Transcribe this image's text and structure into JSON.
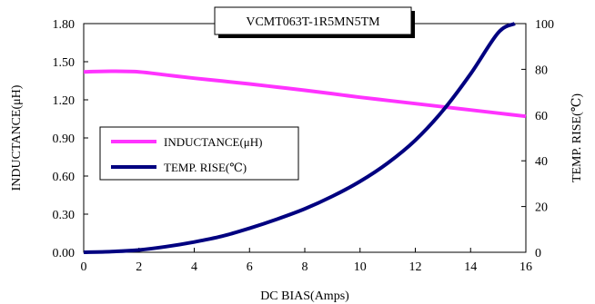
{
  "chart_data": {
    "type": "line",
    "title": "VCMT063T-1R5MN5TM",
    "xlabel": "DC BIAS(Amps)",
    "ylabel": "INDUCTANCE(μH)",
    "y2label": "TEMP. RISE(℃)",
    "xlim": [
      0,
      16
    ],
    "ylim": [
      0,
      1.8
    ],
    "y2lim": [
      0,
      100
    ],
    "x_ticks": [
      "0",
      "2",
      "4",
      "6",
      "8",
      "10",
      "12",
      "14",
      "16"
    ],
    "y_ticks": [
      "0.00",
      "0.30",
      "0.60",
      "0.90",
      "1.20",
      "1.50",
      "1.80"
    ],
    "y2_ticks": [
      "0",
      "20",
      "40",
      "60",
      "80",
      "100"
    ],
    "grid": false,
    "legend_placement": "middle-left",
    "series": [
      {
        "name": "INDUCTANCE(μH)",
        "axis": "left",
        "color": "#ff33ff",
        "x": [
          0,
          1,
          2,
          3,
          4,
          5,
          6,
          7,
          8,
          9,
          10,
          11,
          12,
          13,
          14,
          15,
          16
        ],
        "y": [
          1.42,
          1.425,
          1.42,
          1.395,
          1.37,
          1.348,
          1.325,
          1.3,
          1.275,
          1.248,
          1.22,
          1.195,
          1.17,
          1.145,
          1.12,
          1.095,
          1.07
        ]
      },
      {
        "name": "TEMP. RISE(℃)",
        "axis": "right",
        "color": "#000080",
        "x": [
          0,
          1,
          2,
          3,
          4,
          5,
          6,
          7,
          8,
          9,
          10,
          11,
          12,
          13,
          14,
          15,
          15.6
        ],
        "y": [
          0,
          0.3,
          1,
          2.5,
          4.5,
          7,
          10.5,
          14.5,
          19,
          24.5,
          31,
          39,
          49,
          62,
          78,
          96,
          100
        ]
      }
    ]
  }
}
